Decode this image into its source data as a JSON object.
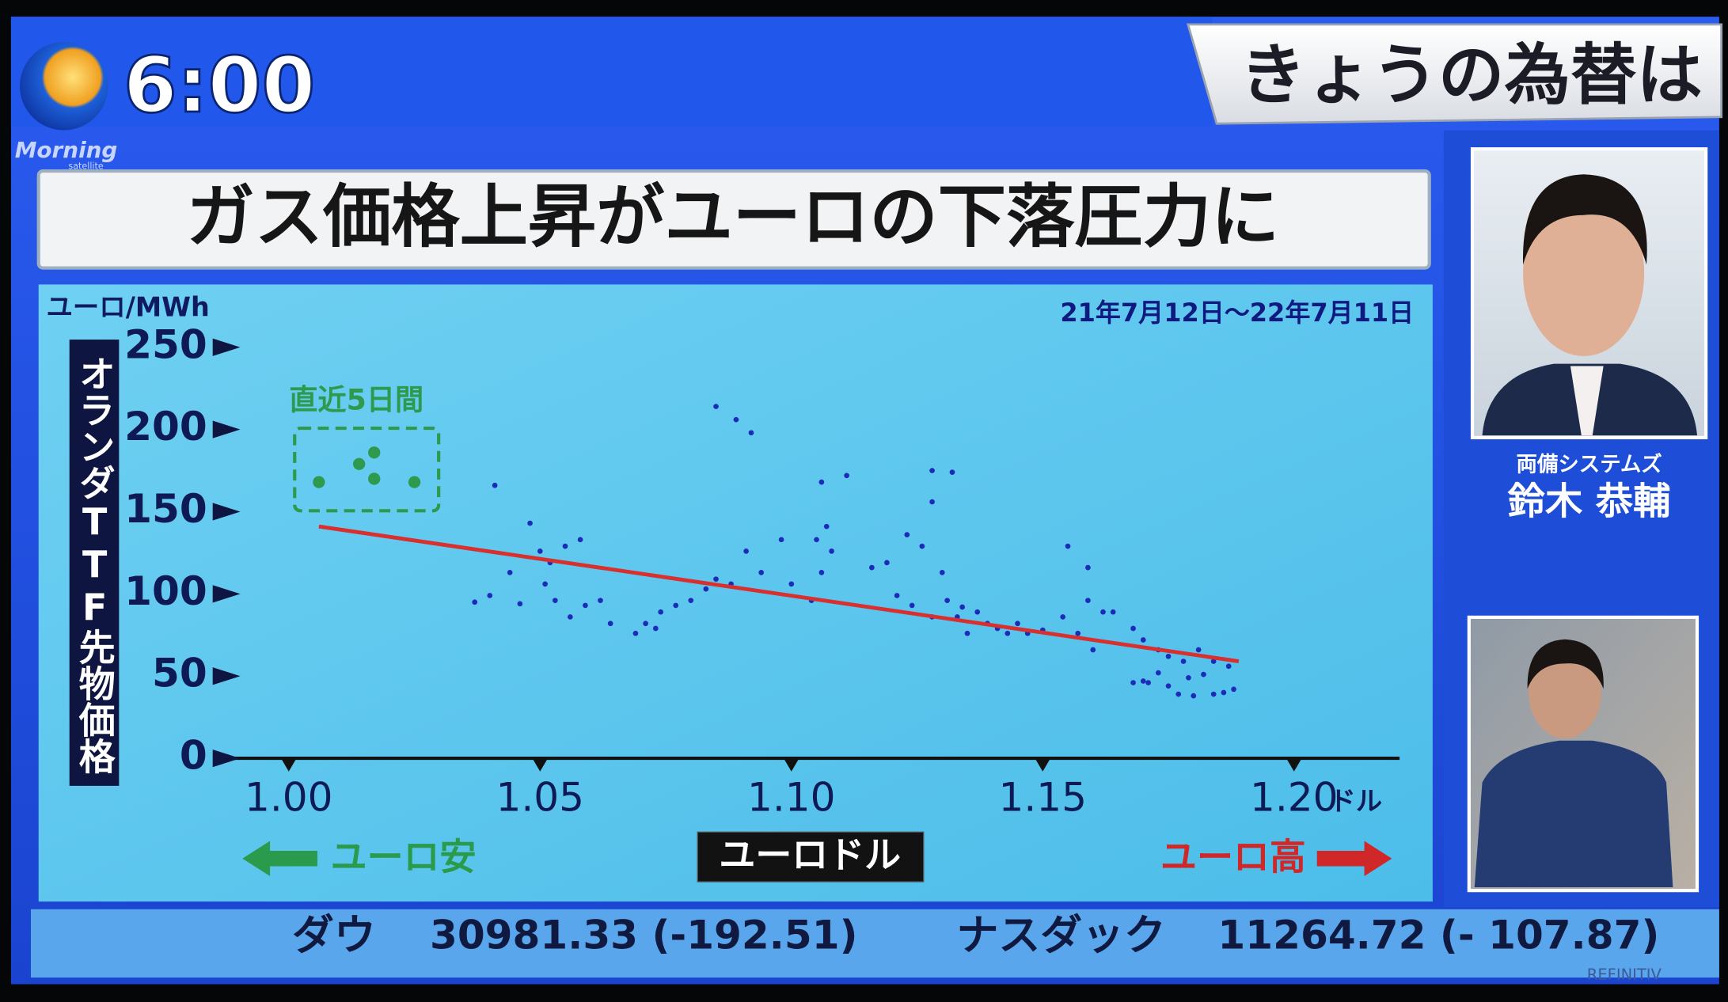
{
  "header": {
    "clock": "6:00",
    "program": "Morning",
    "program_sub": "satellite",
    "banner": "きょうの為替は"
  },
  "headline": "ガス価格上昇がユーロの下落圧力に",
  "chart_data": {
    "type": "scatter",
    "y_unit": "ユーロ/MWh",
    "y_label": "オランダTTF先物価格",
    "period": "21年7月12日～22年7月11日",
    "x_label": "ユーロドル",
    "x_unit": "ドル",
    "left_note": "ユーロ安",
    "right_note": "ユーロ高",
    "xlim": [
      0.9875,
      1.221
    ],
    "ylim": [
      0,
      250
    ],
    "xticks": [
      {
        "value": 1,
        "label": "1.00"
      },
      1.05,
      {
        "value": 1.1,
        "label": "1.10"
      },
      1.15,
      {
        "value": 1.2,
        "label": "1.20"
      }
    ],
    "yticks": [
      0,
      50,
      100,
      150,
      200,
      250
    ],
    "series": [
      {
        "color": "#1c2bb8",
        "x": [
          1.085,
          1.089,
          1.092,
          1.041,
          1.044,
          1.048,
          1.037,
          1.04,
          1.046,
          1.05,
          1.052,
          1.055,
          1.058,
          1.051,
          1.053,
          1.056,
          1.059,
          1.062,
          1.064,
          1.069,
          1.071,
          1.073,
          1.074,
          1.077,
          1.08,
          1.083,
          1.085,
          1.088,
          1.091,
          1.094,
          1.098,
          1.1,
          1.104,
          1.106,
          1.105,
          1.107,
          1.108,
          1.106,
          1.111,
          1.116,
          1.119,
          1.121,
          1.123,
          1.126,
          1.128,
          1.128,
          1.132,
          1.13,
          1.131,
          1.133,
          1.135,
          1.128,
          1.124,
          1.137,
          1.141,
          1.143,
          1.147,
          1.145,
          1.155,
          1.159,
          1.154,
          1.157,
          1.159,
          1.162,
          1.164,
          1.16,
          1.168,
          1.17,
          1.173,
          1.175,
          1.178,
          1.181,
          1.184,
          1.168,
          1.171,
          1.175,
          1.177,
          1.18,
          1.184,
          1.186,
          1.188,
          1.187,
          1.173,
          1.179,
          1.182,
          1.17,
          1.134,
          1.139,
          1.15
        ],
        "values": [
          214,
          206,
          198,
          166,
          113,
          143,
          95,
          99,
          94,
          126,
          119,
          129,
          133,
          106,
          96,
          86,
          93,
          96,
          82,
          76,
          82,
          79,
          89,
          93,
          96,
          103,
          109,
          106,
          126,
          113,
          133,
          106,
          96,
          113,
          133,
          141,
          126,
          168,
          172,
          116,
          119,
          99,
          136,
          129,
          156,
          175,
          174,
          113,
          96,
          86,
          76,
          86,
          93,
          89,
          79,
          76,
          76,
          82,
          129,
          116,
          86,
          76,
          96,
          89,
          89,
          66,
          79,
          72,
          66,
          62,
          59,
          66,
          59,
          46,
          46,
          44,
          39,
          38,
          39,
          40,
          42,
          56,
          52,
          49,
          51,
          47,
          92,
          82,
          78
        ]
      },
      {
        "name": "直近5日間",
        "color": "#2e9a4e",
        "x": [
          1.006,
          1.014,
          1.017,
          1.017,
          1.025
        ],
        "values": [
          168,
          179,
          186,
          170,
          168
        ]
      }
    ],
    "trendline": {
      "color": "#d8302f",
      "x": [
        1.006,
        1.189
      ],
      "values": [
        141,
        59
      ]
    }
  },
  "guest": {
    "company": "両備システムズ",
    "name": "鈴木 恭輔"
  },
  "ticker": [
    {
      "label": "ダウ",
      "value": "30981.33 (-192.51)"
    },
    {
      "label": "ナスダック",
      "value": "11264.72 (- 107.87)"
    }
  ],
  "credit": "REFINITIV"
}
